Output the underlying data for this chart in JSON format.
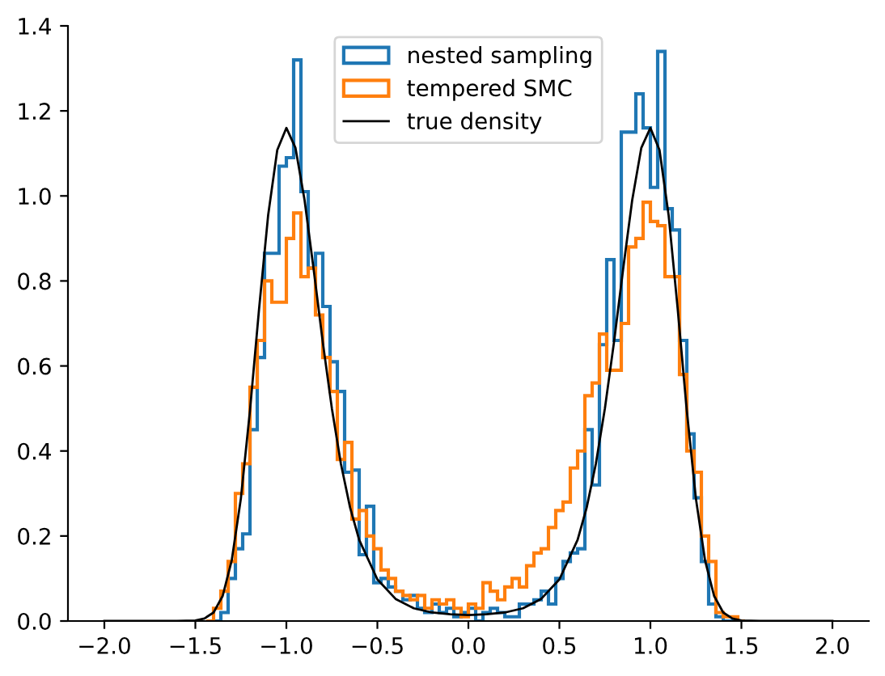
{
  "chart_data": {
    "type": "histogram",
    "xlim": [
      -2.2,
      2.2
    ],
    "ylim": [
      0,
      1.4
    ],
    "xticks": [
      {
        "value": -2,
        "label": "−2.0"
      },
      {
        "value": -1.5,
        "label": "−1.5"
      },
      {
        "value": -1,
        "label": "−1.0"
      },
      {
        "value": -0.5,
        "label": "−0.5"
      },
      {
        "value": 0,
        "label": "0.0"
      },
      0.5,
      {
        "value": 1,
        "label": "1.0"
      },
      1.5,
      {
        "value": 2,
        "label": "2.0"
      }
    ],
    "yticks": [
      {
        "value": 0,
        "label": "0.0"
      },
      0.2,
      0.4,
      0.6,
      0.8,
      {
        "value": 1,
        "label": "1.0"
      },
      1.2,
      1.4
    ],
    "grid": false,
    "legend": "top",
    "bins": [
      -1.44,
      -1.4,
      -1.36,
      -1.32,
      -1.28,
      -1.24,
      -1.2,
      -1.16,
      -1.12,
      -1.08,
      -1.04,
      -1.0,
      -0.96,
      -0.92,
      -0.88,
      -0.84,
      -0.8,
      -0.76,
      -0.72,
      -0.68,
      -0.64,
      -0.6,
      -0.56,
      -0.52,
      -0.48,
      -0.44,
      -0.4,
      -0.36,
      -0.32,
      -0.28,
      -0.24,
      -0.2,
      -0.16,
      -0.12,
      -0.08,
      -0.04,
      0.0,
      0.04,
      0.08,
      0.12,
      0.16,
      0.2,
      0.24,
      0.28,
      0.32,
      0.36,
      0.4,
      0.44,
      0.48,
      0.52,
      0.56,
      0.6,
      0.64,
      0.68,
      0.72,
      0.76,
      0.8,
      0.84,
      0.88,
      0.92,
      0.96,
      1.0,
      1.04,
      1.08,
      1.12,
      1.16,
      1.2,
      1.24,
      1.28,
      1.32,
      1.36,
      1.4,
      1.44,
      1.48,
      1.52
    ],
    "series": [
      {
        "name": "nested sampling",
        "color": "#1f77b4",
        "values": [
          0.0,
          0.0,
          0.02,
          0.1,
          0.17,
          0.205,
          0.45,
          0.62,
          0.865,
          0.865,
          1.07,
          1.09,
          1.32,
          1.01,
          0.83,
          0.865,
          0.74,
          0.61,
          0.54,
          0.35,
          0.355,
          0.156,
          0.27,
          0.09,
          0.1,
          0.08,
          0.07,
          0.05,
          0.06,
          0.03,
          0.02,
          0.04,
          0.02,
          0.03,
          0.01,
          0.02,
          0.03,
          0.0,
          0.02,
          0.03,
          0.02,
          0.01,
          0.01,
          0.04,
          0.04,
          0.05,
          0.07,
          0.04,
          0.1,
          0.14,
          0.16,
          0.17,
          0.45,
          0.32,
          0.65,
          0.85,
          0.66,
          1.15,
          1.15,
          1.24,
          1.16,
          1.02,
          1.34,
          0.97,
          0.92,
          0.66,
          0.44,
          0.29,
          0.14,
          0.04,
          0.01,
          0.0,
          0.0,
          0.0
        ]
      },
      {
        "name": "tempered SMC",
        "color": "#ff7f0e",
        "values": [
          0.0,
          0.03,
          0.07,
          0.14,
          0.3,
          0.37,
          0.55,
          0.66,
          0.8,
          0.75,
          0.75,
          0.9,
          0.96,
          0.81,
          0.83,
          0.72,
          0.62,
          0.54,
          0.38,
          0.42,
          0.24,
          0.26,
          0.2,
          0.17,
          0.12,
          0.1,
          0.07,
          0.06,
          0.05,
          0.06,
          0.03,
          0.05,
          0.04,
          0.05,
          0.03,
          0.01,
          0.04,
          0.03,
          0.09,
          0.07,
          0.05,
          0.08,
          0.1,
          0.08,
          0.13,
          0.16,
          0.17,
          0.22,
          0.26,
          0.28,
          0.36,
          0.4,
          0.53,
          0.56,
          0.675,
          0.59,
          0.59,
          0.7,
          0.88,
          0.9,
          0.985,
          0.94,
          0.93,
          0.81,
          0.81,
          0.58,
          0.4,
          0.35,
          0.2,
          0.14,
          0.02,
          0.01,
          0.01,
          0.0
        ]
      },
      {
        "name": "true density",
        "type": "line",
        "color": "#000000",
        "x": [
          -2.0,
          -1.9,
          -1.8,
          -1.7,
          -1.6,
          -1.5,
          -1.45,
          -1.4,
          -1.35,
          -1.3,
          -1.25,
          -1.2,
          -1.15,
          -1.1,
          -1.05,
          -1.0,
          -0.95,
          -0.9,
          -0.85,
          -0.8,
          -0.75,
          -0.7,
          -0.65,
          -0.6,
          -0.5,
          -0.4,
          -0.3,
          -0.2,
          -0.1,
          0.0,
          0.1,
          0.2,
          0.3,
          0.4,
          0.5,
          0.6,
          0.65,
          0.7,
          0.75,
          0.8,
          0.85,
          0.9,
          0.95,
          1.0,
          1.05,
          1.1,
          1.15,
          1.2,
          1.25,
          1.3,
          1.35,
          1.4,
          1.45,
          1.5,
          1.6,
          1.7,
          1.8,
          1.9,
          2.0
        ],
        "values": [
          0.0,
          0.0,
          0.0,
          0.0,
          0.0,
          0.001,
          0.006,
          0.02,
          0.059,
          0.143,
          0.288,
          0.495,
          0.734,
          0.955,
          1.108,
          1.16,
          1.113,
          0.99,
          0.827,
          0.656,
          0.5,
          0.369,
          0.267,
          0.191,
          0.098,
          0.052,
          0.03,
          0.02,
          0.016,
          0.014,
          0.016,
          0.02,
          0.03,
          0.052,
          0.098,
          0.191,
          0.267,
          0.369,
          0.5,
          0.656,
          0.827,
          0.99,
          1.113,
          1.16,
          1.108,
          0.955,
          0.734,
          0.495,
          0.288,
          0.143,
          0.059,
          0.02,
          0.006,
          0.001,
          0.0,
          0.0,
          0.0,
          0.0,
          0.0
        ]
      }
    ]
  }
}
